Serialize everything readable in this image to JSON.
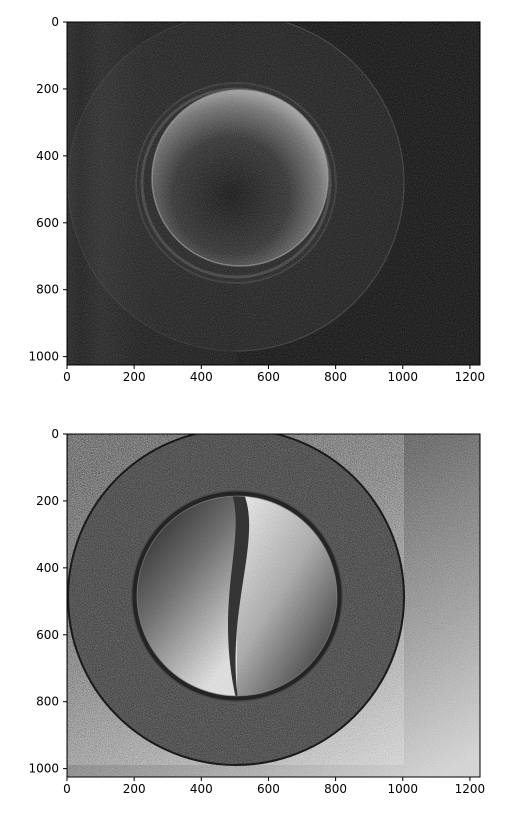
{
  "panels": [
    {
      "id": "top",
      "x_ticks": [
        "0",
        "200",
        "400",
        "600",
        "800",
        "1000",
        "1200"
      ],
      "y_ticks": [
        "0",
        "200",
        "400",
        "600",
        "800",
        "1000"
      ]
    },
    {
      "id": "bottom",
      "x_ticks": [
        "0",
        "200",
        "400",
        "600",
        "800",
        "1000",
        "1200"
      ],
      "y_ticks": [
        "0",
        "200",
        "400",
        "600",
        "800",
        "1000"
      ]
    }
  ]
}
